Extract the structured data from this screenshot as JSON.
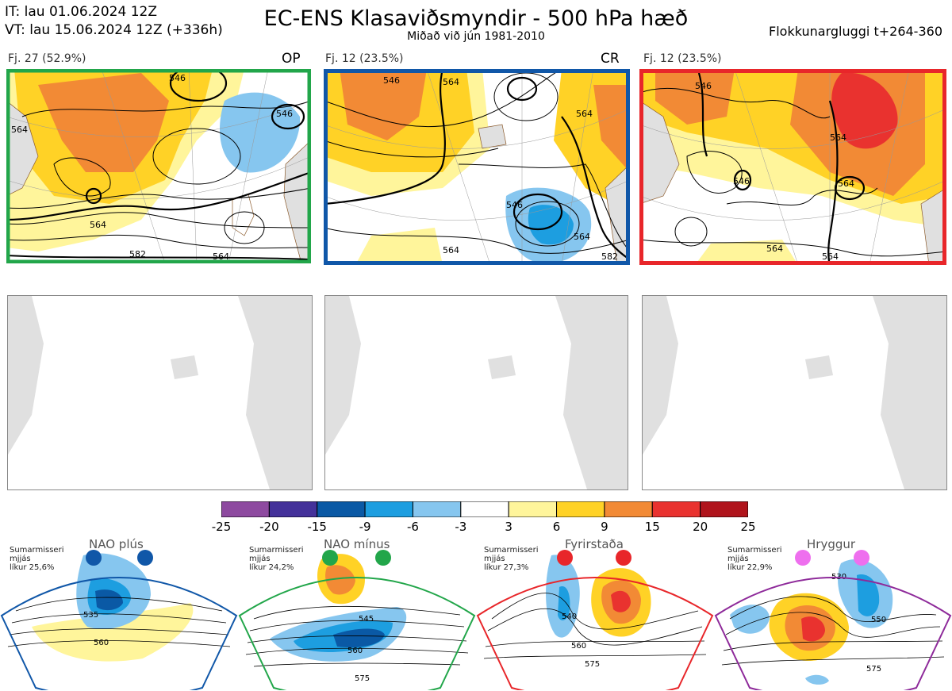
{
  "header": {
    "init_line": "IT: lau 01.06.2024 12Z",
    "valid_line": "VT: lau 15.06.2024 12Z  (+336h)",
    "title": "EC-ENS Klasaviðsmyndir - 500 hPa hæð",
    "subtitle": "Miðað við jún 1981-2010",
    "window": "Flokkunargluggi t+264-360"
  },
  "clusters": [
    {
      "label": "Fj. 27 (52.9%)",
      "tag": "OP",
      "border_color": "#22a64a",
      "contours": [
        "546",
        "564",
        "564",
        "582",
        "564",
        "546"
      ]
    },
    {
      "label": "Fj. 12 (23.5%)",
      "tag": "CR",
      "border_color": "#1057a8",
      "contours": [
        "564",
        "564",
        "546",
        "564",
        "564",
        "546",
        "582"
      ]
    },
    {
      "label": "Fj. 12 (23.5%)",
      "tag": "",
      "border_color": "#e8262a",
      "contours": [
        "564",
        "546",
        "564",
        "564",
        "564",
        "546"
      ]
    }
  ],
  "colorbar": {
    "ticks": [
      "-25",
      "-20",
      "-15",
      "-9",
      "-6",
      "-3",
      "3",
      "6",
      "9",
      "15",
      "20",
      "25"
    ],
    "colors": [
      "#8e4aa0",
      "#44319a",
      "#0a59a5",
      "#1d9ee0",
      "#86c6ef",
      "#ffffff",
      "#fff59b",
      "#ffd226",
      "#f28a35",
      "#e9322f",
      "#b0141c"
    ]
  },
  "regimes": [
    {
      "name": "NAO plús",
      "season": "Sumarmisseri",
      "mean": "mjjás",
      "prob": "líkur 25,6%",
      "color": "#1057a8",
      "contours": [
        "535",
        "560"
      ]
    },
    {
      "name": "NAO mínus",
      "season": "Sumarmisseri",
      "mean": "mjjás",
      "prob": "líkur 24,2%",
      "color": "#22a64a",
      "contours": [
        "545",
        "560",
        "575"
      ]
    },
    {
      "name": "Fyrirstaða",
      "season": "Sumarmisseri",
      "mean": "mjjás",
      "prob": "líkur 27,3%",
      "color": "#e8262a",
      "contours": [
        "540",
        "560",
        "575"
      ]
    },
    {
      "name": "Hryggur",
      "season": "Sumarmisseri",
      "mean": "mjjás",
      "prob": "líkur 22,9%",
      "color": "#8e2a9a",
      "contours": [
        "530",
        "550",
        "575"
      ]
    }
  ]
}
